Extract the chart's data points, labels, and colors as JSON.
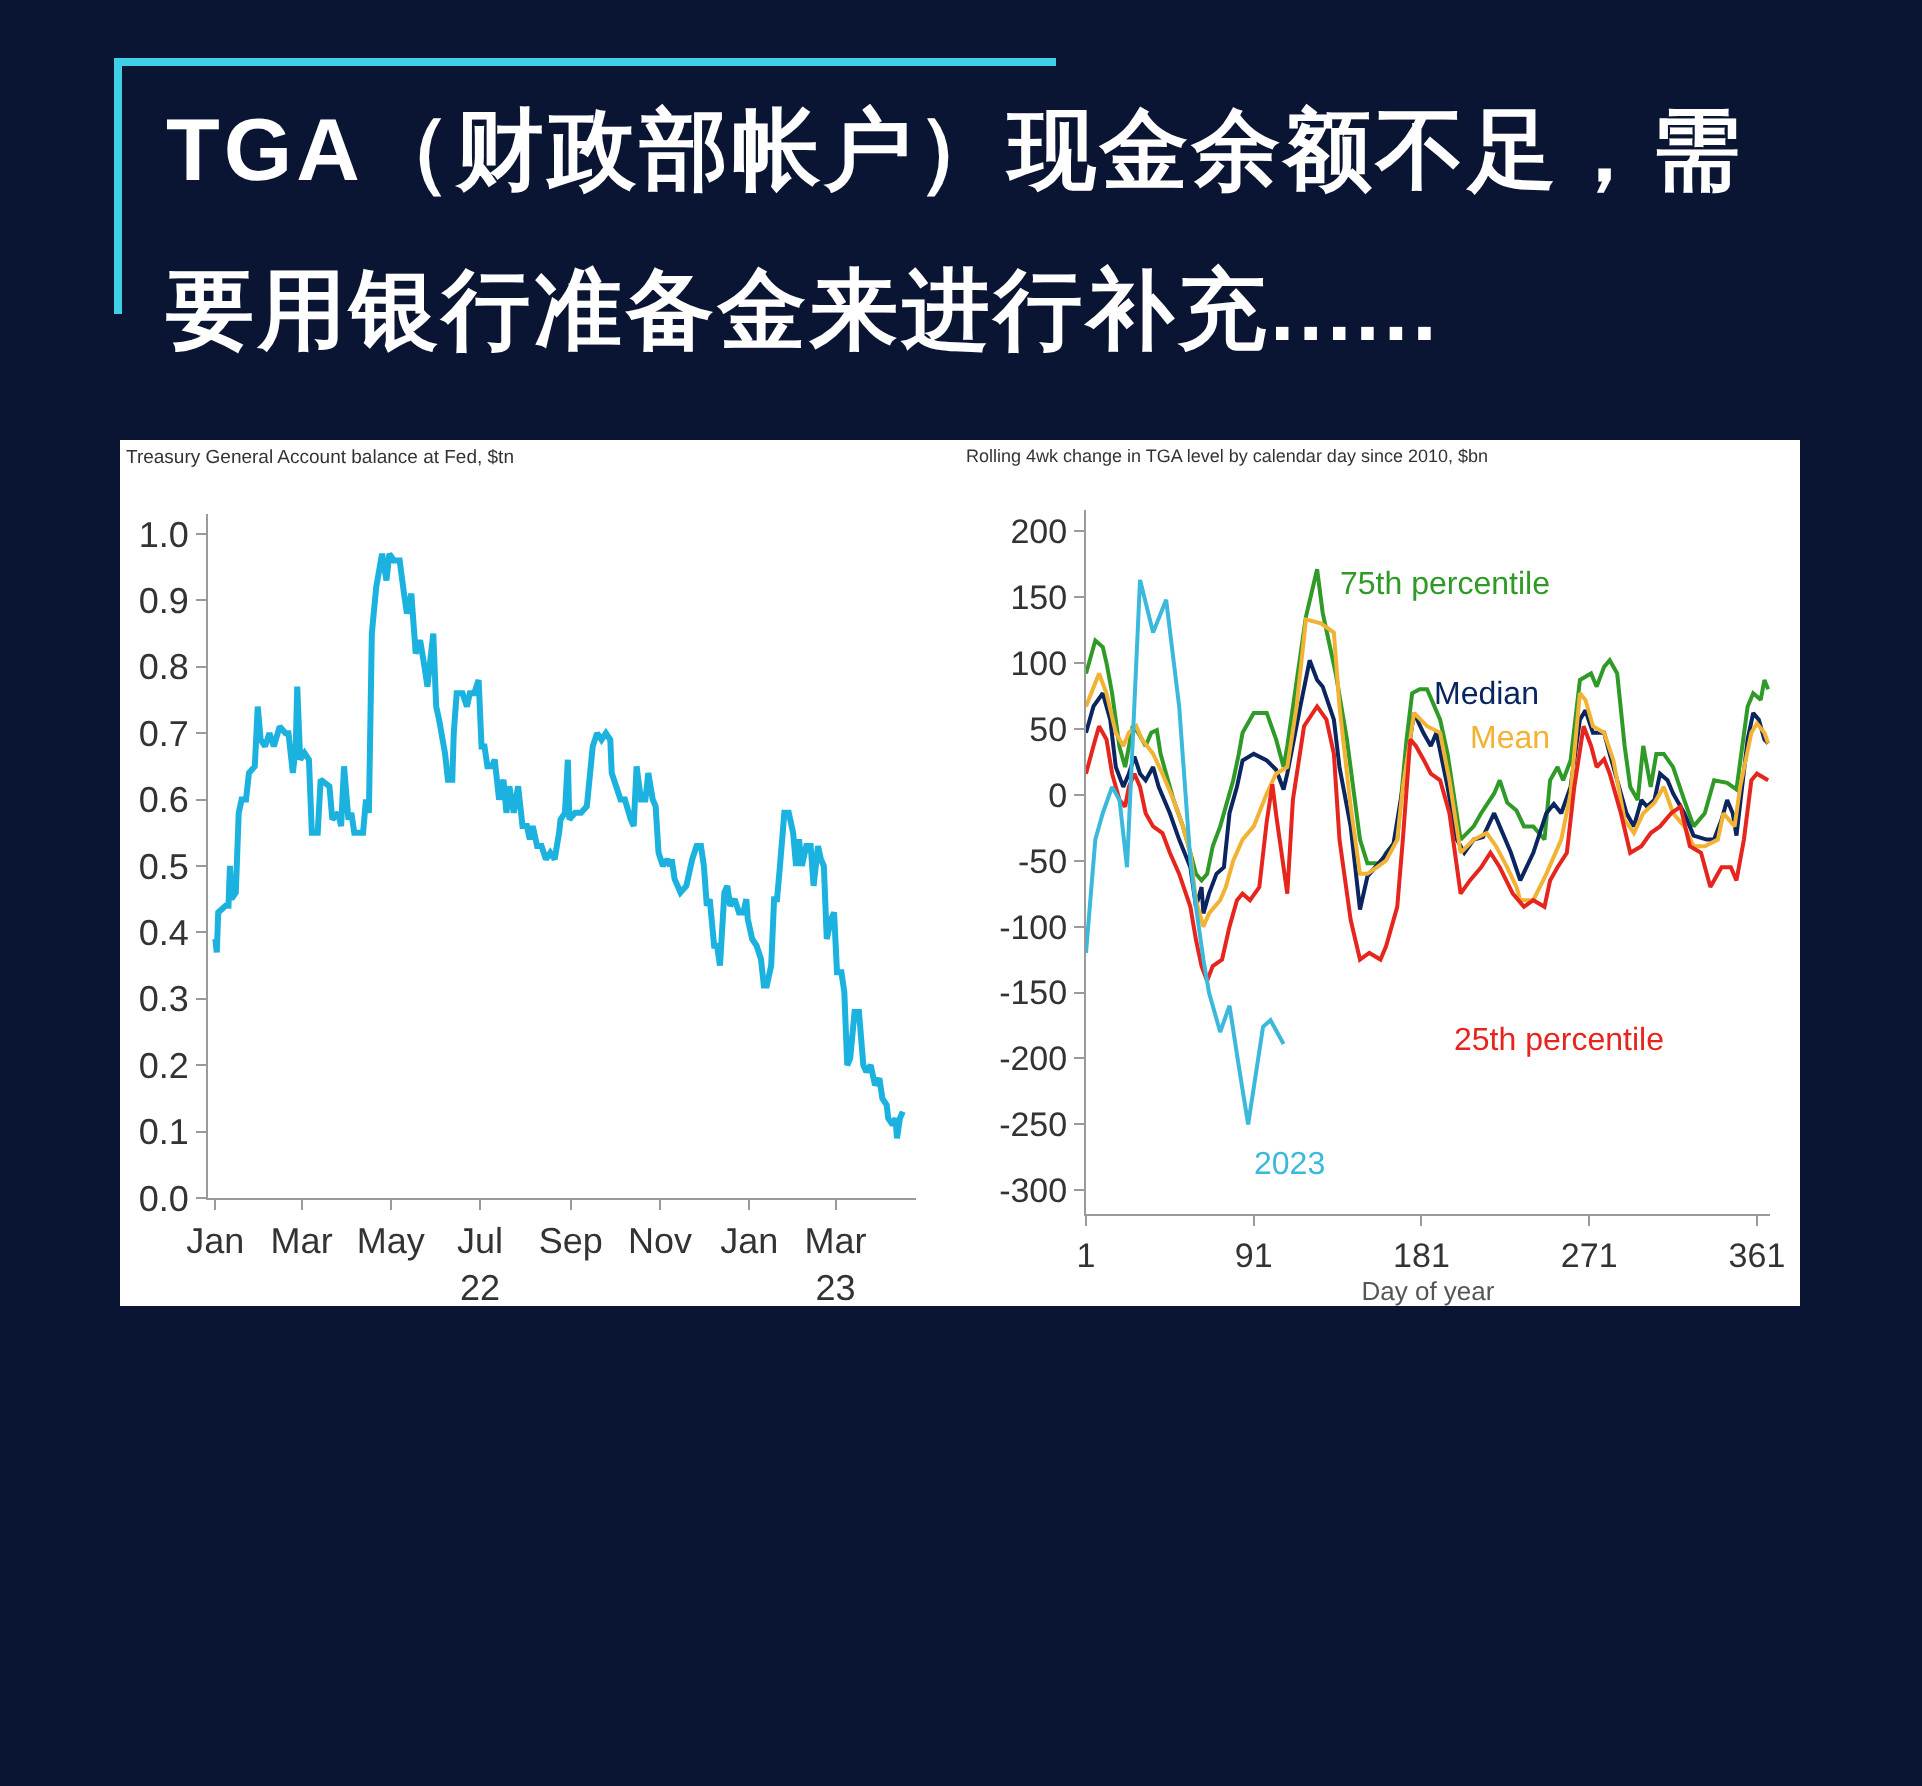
{
  "chart_data": [
    {
      "type": "other",
      "title": "TGA（财政部帐户）现金余额不足，需要用银行准备金来进行补充......"
    },
    {
      "type": "line",
      "title": "Treasury General Account balance at Fed, $tn",
      "color": "#1bb2df",
      "x": [
        "2022-01-01",
        "2022-01-02",
        "2022-01-03",
        "2022-01-08",
        "2022-01-10",
        "2022-01-11",
        "2022-01-12",
        "2022-01-15",
        "2022-01-17",
        "2022-01-19",
        "2022-01-22",
        "2022-01-24",
        "2022-01-28",
        "2022-01-30",
        "2022-02-01",
        "2022-02-04",
        "2022-02-07",
        "2022-02-10",
        "2022-02-14",
        "2022-02-18",
        "2022-02-20",
        "2022-02-23",
        "2022-02-25",
        "2022-02-26",
        "2022-02-28",
        "2022-03-03",
        "2022-03-06",
        "2022-03-08",
        "2022-03-12",
        "2022-03-14",
        "2022-03-20",
        "2022-03-22",
        "2022-03-26",
        "2022-03-28",
        "2022-03-30",
        "2022-04-02",
        "2022-04-04",
        "2022-04-06",
        "2022-04-12",
        "2022-04-14",
        "2022-04-16",
        "2022-04-18",
        "2022-04-21",
        "2022-04-25",
        "2022-04-28",
        "2022-04-30",
        "2022-05-03",
        "2022-05-07",
        "2022-05-10",
        "2022-05-12",
        "2022-05-15",
        "2022-05-18",
        "2022-05-21",
        "2022-05-24",
        "2022-05-26",
        "2022-05-27",
        "2022-05-30",
        "2022-06-01",
        "2022-06-03",
        "2022-06-07",
        "2022-06-09",
        "2022-06-12",
        "2022-06-13",
        "2022-06-15",
        "2022-06-19",
        "2022-06-22",
        "2022-06-24",
        "2022-06-27",
        "2022-06-30",
        "2022-07-02",
        "2022-07-04",
        "2022-07-06",
        "2022-07-09",
        "2022-07-11",
        "2022-07-14",
        "2022-07-17",
        "2022-07-19",
        "2022-07-21",
        "2022-07-24",
        "2022-07-27",
        "2022-07-30",
        "2022-08-02",
        "2022-08-04",
        "2022-08-06",
        "2022-08-09",
        "2022-08-12",
        "2022-08-15",
        "2022-08-18",
        "2022-08-21",
        "2022-08-24",
        "2022-08-25",
        "2022-08-28",
        "2022-08-30",
        "2022-08-31",
        "2022-09-04",
        "2022-09-08",
        "2022-09-12",
        "2022-09-16",
        "2022-09-19",
        "2022-09-22",
        "2022-09-25",
        "2022-09-28",
        "2022-09-29",
        "2022-10-02",
        "2022-10-05",
        "2022-10-08",
        "2022-10-12",
        "2022-10-14",
        "2022-10-16",
        "2022-10-19",
        "2022-10-22",
        "2022-10-24",
        "2022-10-27",
        "2022-10-29",
        "2022-10-31",
        "2022-11-03",
        "2022-11-06",
        "2022-11-08",
        "2022-11-09",
        "2022-11-11",
        "2022-11-15",
        "2022-11-19",
        "2022-11-23",
        "2022-11-26",
        "2022-11-29",
        "2022-12-01",
        "2022-12-03",
        "2022-12-05",
        "2022-12-08",
        "2022-12-10",
        "2022-12-12",
        "2022-12-15",
        "2022-12-17",
        "2022-12-19",
        "2022-12-22",
        "2022-12-25",
        "2022-12-28",
        "2022-12-30",
        "2022-12-31",
        "2023-01-03",
        "2023-01-06",
        "2023-01-09",
        "2023-01-11",
        "2023-01-13",
        "2023-01-16",
        "2023-01-18",
        "2023-01-20",
        "2023-01-22",
        "2023-01-25",
        "2023-01-28",
        "2023-01-31",
        "2023-02-02",
        "2023-02-04",
        "2023-02-06",
        "2023-02-09",
        "2023-02-12",
        "2023-02-14",
        "2023-02-17",
        "2023-02-19",
        "2023-02-21",
        "2023-02-23",
        "2023-02-26",
        "2023-02-28",
        "2023-03-02",
        "2023-03-05",
        "2023-03-07",
        "2023-03-09",
        "2023-03-11",
        "2023-03-14",
        "2023-03-17",
        "2023-03-20",
        "2023-03-22",
        "2023-03-25",
        "2023-03-28",
        "2023-03-31",
        "2023-04-02",
        "2023-04-05",
        "2023-04-06",
        "2023-04-09",
        "2023-04-11",
        "2023-04-12",
        "2023-04-14",
        "2023-04-16"
      ],
      "values": [
        0.39,
        0.37,
        0.43,
        0.44,
        0.44,
        0.5,
        0.45,
        0.46,
        0.58,
        0.6,
        0.6,
        0.64,
        0.65,
        0.74,
        0.69,
        0.68,
        0.7,
        0.68,
        0.71,
        0.7,
        0.7,
        0.64,
        0.68,
        0.77,
        0.66,
        0.67,
        0.66,
        0.55,
        0.55,
        0.63,
        0.62,
        0.57,
        0.58,
        0.56,
        0.65,
        0.57,
        0.58,
        0.55,
        0.55,
        0.6,
        0.58,
        0.85,
        0.92,
        0.97,
        0.93,
        0.97,
        0.96,
        0.96,
        0.91,
        0.88,
        0.91,
        0.82,
        0.84,
        0.8,
        0.77,
        0.79,
        0.85,
        0.74,
        0.72,
        0.67,
        0.63,
        0.63,
        0.7,
        0.76,
        0.76,
        0.74,
        0.76,
        0.76,
        0.78,
        0.68,
        0.68,
        0.65,
        0.65,
        0.66,
        0.6,
        0.63,
        0.58,
        0.62,
        0.58,
        0.62,
        0.56,
        0.56,
        0.54,
        0.56,
        0.53,
        0.53,
        0.51,
        0.52,
        0.51,
        0.55,
        0.57,
        0.58,
        0.66,
        0.57,
        0.58,
        0.58,
        0.59,
        0.68,
        0.7,
        0.69,
        0.7,
        0.69,
        0.64,
        0.62,
        0.6,
        0.6,
        0.57,
        0.56,
        0.65,
        0.6,
        0.6,
        0.64,
        0.6,
        0.59,
        0.52,
        0.5,
        0.51,
        0.5,
        0.51,
        0.48,
        0.46,
        0.47,
        0.51,
        0.53,
        0.53,
        0.5,
        0.44,
        0.45,
        0.38,
        0.38,
        0.35,
        0.46,
        0.47,
        0.44,
        0.45,
        0.43,
        0.43,
        0.45,
        0.42,
        0.39,
        0.38,
        0.36,
        0.32,
        0.32,
        0.35,
        0.45,
        0.45,
        0.5,
        0.58,
        0.58,
        0.55,
        0.5,
        0.54,
        0.5,
        0.53,
        0.53,
        0.47,
        0.53,
        0.51,
        0.5,
        0.39,
        0.42,
        0.43,
        0.34,
        0.34,
        0.31,
        0.2,
        0.21,
        0.28,
        0.28,
        0.2,
        0.19,
        0.2,
        0.17,
        0.18,
        0.15,
        0.14,
        0.12,
        0.11,
        0.12,
        0.09,
        0.12,
        0.13
      ],
      "xlim": [
        "2021-12-27",
        "2023-04-25"
      ],
      "xticks": [
        {
          "value": "2022-01-01",
          "label": "Jan"
        },
        {
          "value": "2022-03-01",
          "label": "Mar"
        },
        {
          "value": "2022-05-01",
          "label": "May"
        },
        {
          "value": "2022-07-01",
          "label": "Jul\n22"
        },
        {
          "value": "2022-09-01",
          "label": "Sep"
        },
        {
          "value": "2022-11-01",
          "label": "Nov"
        },
        {
          "value": "2023-01-01",
          "label": "Jan"
        },
        {
          "value": "2023-03-01",
          "label": "Mar\n23"
        }
      ],
      "ylim": [
        0,
        1.03
      ],
      "yticks": [
        {
          "value": 0,
          "label": "0.0"
        },
        {
          "value": 0.1,
          "label": "0.1"
        },
        {
          "value": 0.2,
          "label": "0.2"
        },
        {
          "value": 0.3,
          "label": "0.3"
        },
        {
          "value": 0.4,
          "label": "0.4"
        },
        {
          "value": 0.5,
          "label": "0.5"
        },
        {
          "value": 0.6,
          "label": "0.6"
        },
        {
          "value": 0.7,
          "label": "0.7"
        },
        {
          "value": 0.8,
          "label": "0.8"
        },
        {
          "value": 0.9,
          "label": "0.9"
        },
        {
          "value": 1,
          "label": "1.0"
        }
      ]
    },
    {
      "type": "line",
      "title": "Rolling 4wk change in TGA level by calendar day since 2010, $bn",
      "xlabel": "Day of year",
      "series": [
        {
          "name": "75th percentile",
          "color": "#2f9a27",
          "x": [
            1,
            6,
            10,
            12,
            15,
            19,
            22,
            26,
            29,
            33,
            36,
            39,
            41,
            44,
            48,
            53,
            57,
            60,
            63,
            66,
            69,
            73,
            76,
            80,
            83,
            85,
            91,
            98,
            103,
            107,
            109,
            119,
            125,
            128,
            135,
            141,
            148,
            152,
            159,
            162,
            168,
            173,
            176,
            180,
            184,
            191,
            195,
            202,
            209,
            213,
            220,
            223,
            227,
            232,
            236,
            241,
            247,
            250,
            254,
            257,
            261,
            266,
            272,
            275,
            279,
            282,
            286,
            290,
            293,
            297,
            300,
            304,
            307,
            311,
            316,
            322,
            327,
            333,
            338,
            345,
            350,
            356,
            359,
            363,
            365,
            367
          ],
          "values": [
            92,
            117,
            112,
            100,
            77,
            36,
            21,
            52,
            47,
            37,
            47,
            49,
            31,
            16,
            -4,
            -24,
            -44,
            -60,
            -65,
            -60,
            -39,
            -24,
            -9,
            11,
            31,
            47,
            62,
            62,
            42,
            21,
            37,
            135,
            171,
            138,
            92,
            42,
            -34,
            -52,
            -52,
            -44,
            -34,
            42,
            77,
            80,
            80,
            57,
            31,
            -34,
            -24,
            -14,
            1,
            11,
            -6,
            -12,
            -24,
            -24,
            -34,
            11,
            21,
            11,
            26,
            87,
            92,
            82,
            97,
            102,
            92,
            37,
            6,
            -4,
            37,
            6,
            31,
            31,
            21,
            -4,
            -24,
            -14,
            11,
            9,
            4,
            67,
            77,
            72,
            87,
            80
          ]
        },
        {
          "name": "Median",
          "color": "#0b2560",
          "x": [
            1,
            5,
            10,
            14,
            17,
            21,
            24,
            27,
            30,
            33,
            37,
            40,
            46,
            51,
            57,
            60,
            63,
            64,
            67,
            71,
            75,
            78,
            82,
            85,
            91,
            98,
            103,
            107,
            109,
            116,
            121,
            125,
            128,
            134,
            137,
            143,
            148,
            152,
            155,
            161,
            166,
            171,
            177,
            182,
            186,
            189,
            195,
            200,
            204,
            209,
            214,
            220,
            223,
            229,
            234,
            241,
            248,
            252,
            256,
            261,
            266,
            269,
            273,
            279,
            282,
            286,
            291,
            295,
            299,
            302,
            306,
            309,
            313,
            316,
            322,
            327,
            334,
            338,
            342,
            345,
            348,
            350,
            356,
            359,
            362,
            365,
            367
          ],
          "values": [
            47,
            67,
            77,
            57,
            21,
            6,
            16,
            29,
            16,
            11,
            21,
            6,
            -14,
            -34,
            -55,
            -85,
            -70,
            -90,
            -75,
            -60,
            -55,
            -14,
            6,
            26,
            31,
            26,
            19,
            4,
            16,
            67,
            102,
            87,
            82,
            57,
            21,
            -24,
            -87,
            -62,
            -57,
            -47,
            -37,
            6,
            62,
            47,
            37,
            47,
            6,
            -34,
            -44,
            -34,
            -32,
            -14,
            -24,
            -44,
            -65,
            -44,
            -14,
            -7,
            -14,
            6,
            57,
            64,
            47,
            47,
            31,
            11,
            -14,
            -24,
            -4,
            -9,
            -4,
            16,
            11,
            1,
            -14,
            -31,
            -34,
            -34,
            -19,
            -4,
            -14,
            -31,
            42,
            62,
            57,
            42,
            39
          ]
        },
        {
          "name": "Mean",
          "color": "#f2b233",
          "x": [
            1,
            8,
            12,
            17,
            21,
            24,
            28,
            31,
            37,
            42,
            48,
            53,
            57,
            60,
            64,
            67,
            73,
            76,
            80,
            85,
            91,
            98,
            103,
            109,
            114,
            119,
            127,
            134,
            137,
            143,
            148,
            152,
            157,
            162,
            168,
            171,
            177,
            184,
            191,
            196,
            202,
            209,
            216,
            221,
            227,
            232,
            234,
            241,
            248,
            256,
            261,
            266,
            269,
            273,
            279,
            284,
            290,
            295,
            300,
            306,
            311,
            316,
            322,
            327,
            333,
            340,
            343,
            349,
            352,
            358,
            361,
            365,
            367
          ],
          "values": [
            67,
            92,
            77,
            47,
            37,
            47,
            52,
            42,
            31,
            16,
            -4,
            -24,
            -44,
            -80,
            -100,
            -90,
            -80,
            -70,
            -50,
            -34,
            -24,
            1,
            16,
            21,
            67,
            133,
            130,
            123,
            67,
            -9,
            -60,
            -60,
            -55,
            -50,
            -34,
            6,
            62,
            52,
            47,
            11,
            -44,
            -34,
            -29,
            -39,
            -55,
            -70,
            -80,
            -80,
            -60,
            -34,
            1,
            77,
            72,
            52,
            47,
            26,
            -19,
            -29,
            -14,
            -6,
            6,
            -14,
            -24,
            -39,
            -39,
            -34,
            -14,
            -24,
            6,
            47,
            54,
            47,
            39
          ]
        },
        {
          "name": "25th percentile",
          "color": "#e5251e",
          "x": [
            1,
            5,
            8,
            12,
            15,
            19,
            22,
            24,
            27,
            30,
            33,
            37,
            42,
            46,
            51,
            57,
            60,
            63,
            66,
            69,
            74,
            78,
            82,
            85,
            89,
            94,
            98,
            101,
            103,
            107,
            109,
            112,
            118,
            125,
            130,
            134,
            137,
            143,
            148,
            153,
            159,
            162,
            168,
            171,
            175,
            178,
            182,
            186,
            191,
            196,
            202,
            207,
            213,
            218,
            223,
            230,
            236,
            241,
            247,
            250,
            254,
            259,
            263,
            268,
            272,
            275,
            279,
            282,
            288,
            293,
            299,
            304,
            309,
            315,
            320,
            325,
            331,
            336,
            342,
            347,
            350,
            354,
            358,
            361,
            367
          ],
          "values": [
            16,
            37,
            52,
            42,
            16,
            -4,
            -9,
            6,
            16,
            6,
            -14,
            -24,
            -29,
            -44,
            -60,
            -85,
            -110,
            -130,
            -141,
            -130,
            -125,
            -100,
            -80,
            -75,
            -80,
            -70,
            -20,
            8,
            -15,
            -55,
            -75,
            -4,
            52,
            67,
            57,
            31,
            -34,
            -95,
            -125,
            -120,
            -125,
            -115,
            -85,
            -34,
            42,
            37,
            27,
            16,
            11,
            -14,
            -75,
            -65,
            -55,
            -44,
            -55,
            -75,
            -85,
            -80,
            -85,
            -65,
            -55,
            -44,
            6,
            52,
            37,
            21,
            27,
            16,
            -14,
            -44,
            -39,
            -29,
            -24,
            -14,
            -9,
            -39,
            -44,
            -70,
            -55,
            -55,
            -65,
            -34,
            11,
            16,
            11
          ]
        },
        {
          "name": "2023",
          "color": "#3ab9dc",
          "x": [
            1,
            6,
            10,
            15,
            19,
            23,
            30,
            37,
            44,
            51,
            57,
            60,
            64,
            67,
            73,
            78,
            83,
            88,
            96,
            100,
            107
          ],
          "values": [
            -120,
            -34,
            -14,
            6,
            -4,
            -55,
            163,
            123,
            148,
            67,
            -50,
            -85,
            -125,
            -150,
            -180,
            -160,
            -206,
            -250,
            -176,
            -171,
            -189
          ]
        }
      ],
      "xlim": [
        1,
        368
      ],
      "xticks": [
        1,
        91,
        181,
        271,
        361
      ],
      "ylim": [
        -318,
        216
      ],
      "yticks": [
        200,
        150,
        100,
        50,
        0,
        -50,
        -100,
        -150,
        -200,
        -250,
        -300
      ]
    }
  ]
}
